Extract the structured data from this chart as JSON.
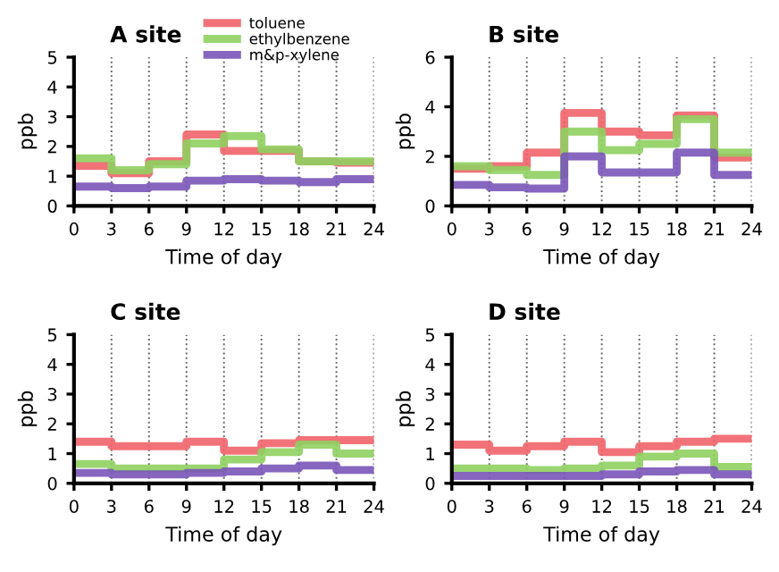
{
  "chart_data": [
    {
      "type": "step",
      "title": "A site",
      "xlabel": "Time of day",
      "ylabel": "ppb",
      "x": [
        0,
        3,
        6,
        9,
        12,
        15,
        18,
        21,
        24
      ],
      "xlim": [
        0,
        24
      ],
      "xticks": [
        0,
        3,
        6,
        9,
        12,
        15,
        18,
        21,
        24
      ],
      "ylim": [
        0,
        5
      ],
      "yticks": [
        0,
        1,
        2,
        3,
        4,
        5
      ],
      "grid": "x",
      "line_style": "solid",
      "legend": "top right",
      "series": [
        {
          "name": "toluene",
          "color": "#f0646a",
          "values": [
            1.35,
            1.1,
            1.5,
            2.4,
            1.85,
            1.85,
            1.5,
            1.45,
            1.45
          ]
        },
        {
          "name": "ethylbenzene",
          "color": "#8fd060",
          "values": [
            1.6,
            1.2,
            1.4,
            2.1,
            2.35,
            1.9,
            1.5,
            1.5,
            1.5
          ]
        },
        {
          "name": "m&p-xylene",
          "color": "#7a55b8",
          "values": [
            0.65,
            0.6,
            0.65,
            0.85,
            0.9,
            0.85,
            0.8,
            0.9,
            0.9
          ]
        }
      ]
    },
    {
      "type": "step",
      "title": "B site",
      "xlabel": "Time of day",
      "ylabel": "ppb",
      "x": [
        0,
        3,
        6,
        9,
        12,
        15,
        18,
        21,
        24
      ],
      "xlim": [
        0,
        24
      ],
      "xticks": [
        0,
        3,
        6,
        9,
        12,
        15,
        18,
        21,
        24
      ],
      "ylim": [
        0,
        6
      ],
      "yticks": [
        0,
        2,
        4,
        6
      ],
      "grid": "x",
      "line_style": "solid",
      "series": [
        {
          "color": "#f0646a",
          "values": [
            1.5,
            1.6,
            2.15,
            3.75,
            3.0,
            2.85,
            3.65,
            1.95,
            1.95
          ]
        },
        {
          "color": "#8fd060",
          "values": [
            1.6,
            1.45,
            1.25,
            3.0,
            2.25,
            2.5,
            3.5,
            2.15,
            2.15
          ]
        },
        {
          "color": "#7a55b8",
          "values": [
            0.85,
            0.75,
            0.7,
            2.0,
            1.35,
            1.35,
            2.15,
            1.25,
            1.25
          ]
        }
      ]
    },
    {
      "type": "step",
      "title": "C site",
      "xlabel": "Time of day",
      "ylabel": "ppb",
      "x": [
        0,
        3,
        6,
        9,
        12,
        15,
        18,
        21,
        24
      ],
      "xlim": [
        0,
        24
      ],
      "xticks": [
        0,
        3,
        6,
        9,
        12,
        15,
        18,
        21,
        24
      ],
      "ylim": [
        0,
        5
      ],
      "yticks": [
        0,
        1,
        2,
        3,
        4,
        5
      ],
      "grid": "x",
      "line_style": "solid",
      "series": [
        {
          "color": "#f0646a",
          "values": [
            1.4,
            1.25,
            1.25,
            1.4,
            1.1,
            1.35,
            1.45,
            1.45,
            1.45
          ]
        },
        {
          "color": "#8fd060",
          "values": [
            0.65,
            0.5,
            0.5,
            0.5,
            0.8,
            1.05,
            1.3,
            1.0,
            1.0
          ]
        },
        {
          "color": "#7a55b8",
          "values": [
            0.35,
            0.3,
            0.3,
            0.35,
            0.4,
            0.5,
            0.6,
            0.45,
            0.45
          ]
        }
      ]
    },
    {
      "type": "step",
      "title": "D site",
      "xlabel": "Time of day",
      "ylabel": "ppb",
      "x": [
        0,
        3,
        6,
        9,
        12,
        15,
        18,
        21,
        24
      ],
      "xlim": [
        0,
        24
      ],
      "xticks": [
        0,
        3,
        6,
        9,
        12,
        15,
        18,
        21,
        24
      ],
      "ylim": [
        0,
        5
      ],
      "yticks": [
        0,
        1,
        2,
        3,
        4,
        5
      ],
      "grid": "x",
      "line_style": "solid",
      "series": [
        {
          "color": "#f0646a",
          "values": [
            1.3,
            1.1,
            1.25,
            1.4,
            1.05,
            1.25,
            1.4,
            1.5,
            1.5
          ]
        },
        {
          "color": "#8fd060",
          "values": [
            0.5,
            0.5,
            0.45,
            0.5,
            0.6,
            0.9,
            1.0,
            0.55,
            0.55
          ]
        },
        {
          "color": "#7a55b8",
          "values": [
            0.25,
            0.25,
            0.25,
            0.25,
            0.3,
            0.4,
            0.45,
            0.3,
            0.3
          ]
        }
      ]
    }
  ]
}
